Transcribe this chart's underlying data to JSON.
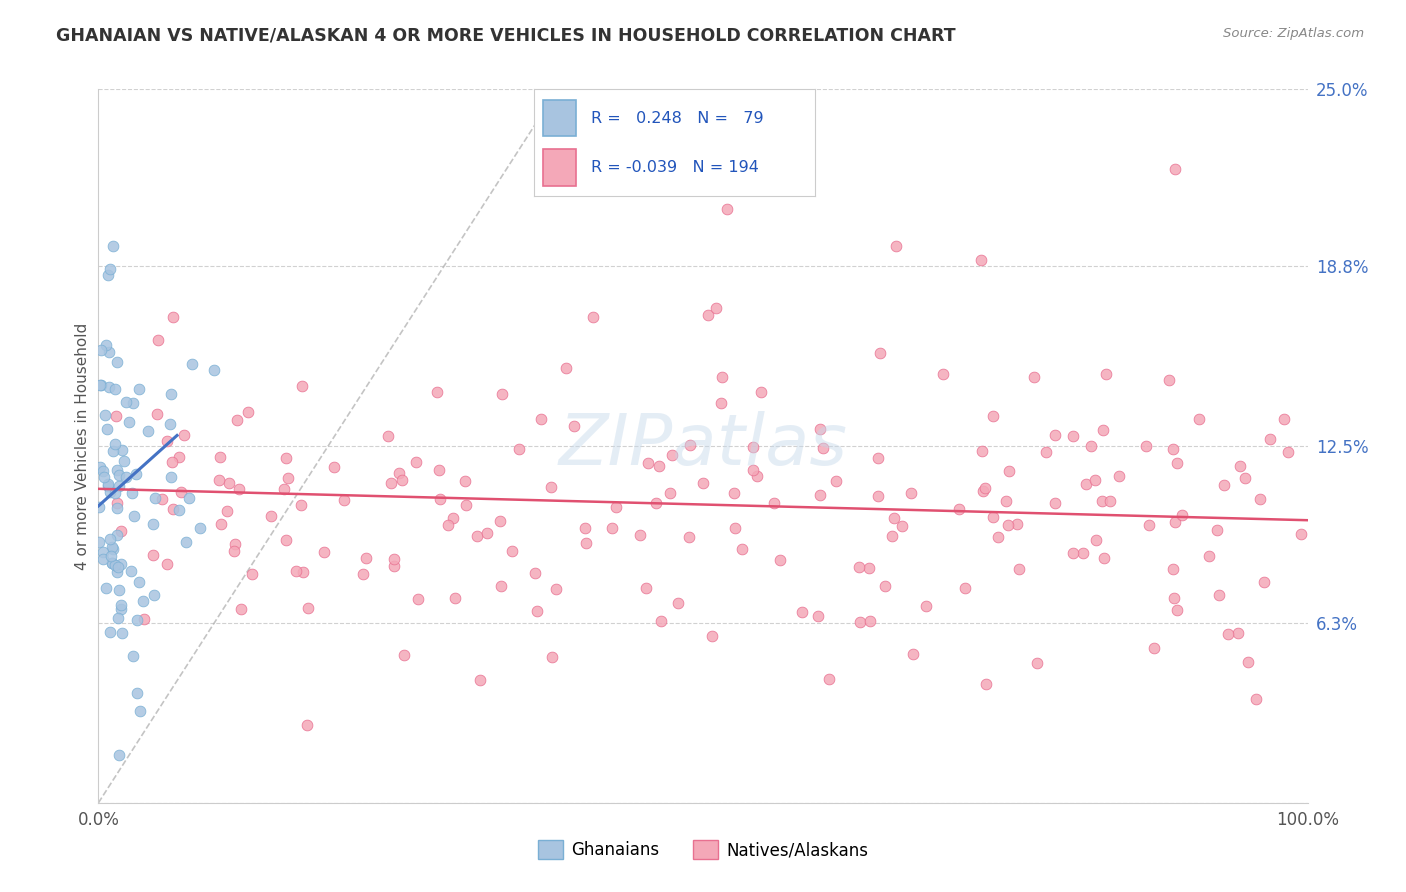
{
  "title": "GHANAIAN VS NATIVE/ALASKAN 4 OR MORE VEHICLES IN HOUSEHOLD CORRELATION CHART",
  "source_text": "Source: ZipAtlas.com",
  "ylabel": "4 or more Vehicles in Household",
  "xlim": [
    0.0,
    100.0
  ],
  "ylim": [
    0.0,
    25.0
  ],
  "right_ticks": [
    0.0,
    6.3,
    12.5,
    18.8,
    25.0
  ],
  "right_labels": [
    "",
    "6.3%",
    "12.5%",
    "18.8%",
    "25.0%"
  ],
  "blue_R": 0.248,
  "blue_N": 79,
  "pink_R": -0.039,
  "pink_N": 194,
  "blue_color": "#a8c4e0",
  "pink_color": "#f4a8b8",
  "blue_edge": "#7aafd4",
  "pink_edge": "#e87090",
  "blue_line_color": "#4472c4",
  "pink_line_color": "#e05070",
  "ref_line_color": "#b0b0b0",
  "background_color": "#ffffff",
  "watermark_text": "ZIPatlas",
  "legend_label_blue": "Ghanaians",
  "legend_label_pink": "Natives/Alaskans",
  "grid_color": "#cccccc",
  "title_color": "#333333",
  "source_color": "#888888",
  "tick_color": "#4472c4",
  "ylabel_color": "#555555"
}
